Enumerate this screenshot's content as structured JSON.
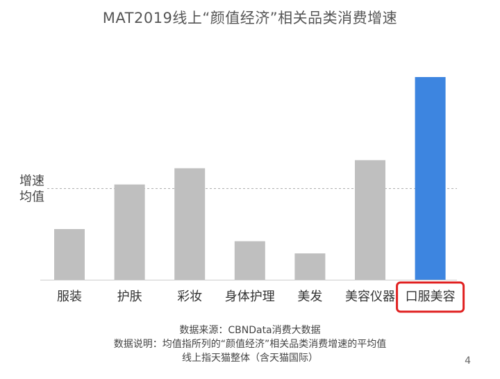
{
  "chart_data": {
    "type": "bar",
    "title": "MAT2019线上“颜值经济”相关品类消费增速",
    "categories": [
      "服装",
      "护肤",
      "彩妆",
      "身体护理",
      "美发",
      "美容仪器",
      "口服美容"
    ],
    "values": [
      0.25,
      0.47,
      0.55,
      0.19,
      0.13,
      0.59,
      1.0
    ],
    "value_unit": "fraction of max (no axis values printed)",
    "average_value": 0.45,
    "average_label": "增速均值",
    "highlight_category": "口服美容",
    "colors": {
      "bar": "#bfbfbf",
      "highlight_bar": "#3d85e0",
      "highlight_box": "#e02020",
      "average_line": "#aaaaaa"
    },
    "grid": false,
    "legend": "none"
  },
  "footnotes": {
    "source": "数据来源：CBNData消费大数据",
    "note": "数据说明：均值指所列的“颜值经济”相关品类消费增速的平均值",
    "scope": "线上指天猫整体（含天猫国际）"
  },
  "page_number": "4"
}
